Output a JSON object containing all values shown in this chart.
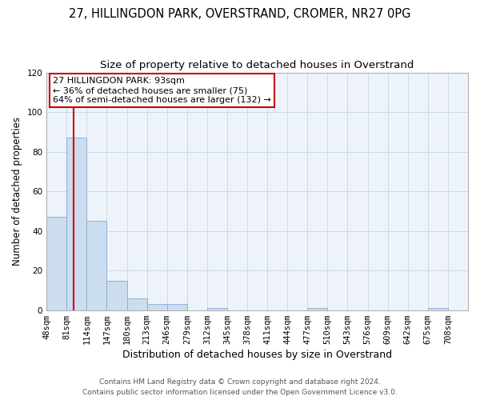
{
  "title1": "27, HILLINGDON PARK, OVERSTRAND, CROMER, NR27 0PG",
  "title2": "Size of property relative to detached houses in Overstrand",
  "xlabel": "Distribution of detached houses by size in Overstrand",
  "ylabel": "Number of detached properties",
  "bin_edges": [
    48,
    81,
    114,
    147,
    180,
    213,
    246,
    279,
    312,
    345,
    378,
    411,
    444,
    477,
    510,
    543,
    576,
    609,
    642,
    675,
    708
  ],
  "bar_heights": [
    47,
    87,
    45,
    15,
    6,
    3,
    3,
    0,
    1,
    0,
    0,
    0,
    0,
    1,
    0,
    0,
    0,
    0,
    0,
    1,
    0
  ],
  "bar_color": "#ccddf0",
  "bar_edge_color": "#88aacc",
  "vline_x": 93,
  "vline_color": "#cc0000",
  "ylim": [
    0,
    120
  ],
  "yticks": [
    0,
    20,
    40,
    60,
    80,
    100,
    120
  ],
  "annotation_title": "27 HILLINGDON PARK: 93sqm",
  "annotation_line1": "← 36% of detached houses are smaller (75)",
  "annotation_line2": "64% of semi-detached houses are larger (132) →",
  "annotation_box_color": "#ffffff",
  "annotation_box_edgecolor": "#cc0000",
  "footnote1": "Contains HM Land Registry data © Crown copyright and database right 2024.",
  "footnote2": "Contains public sector information licensed under the Open Government Licence v3.0.",
  "background_color": "#ffffff",
  "grid_color": "#c8d8e8",
  "plot_bg_color": "#eef3fa",
  "title1_fontsize": 10.5,
  "title2_fontsize": 9.5,
  "xlabel_fontsize": 9,
  "ylabel_fontsize": 8.5,
  "tick_fontsize": 7.5,
  "annotation_fontsize": 8,
  "footnote_fontsize": 6.5
}
